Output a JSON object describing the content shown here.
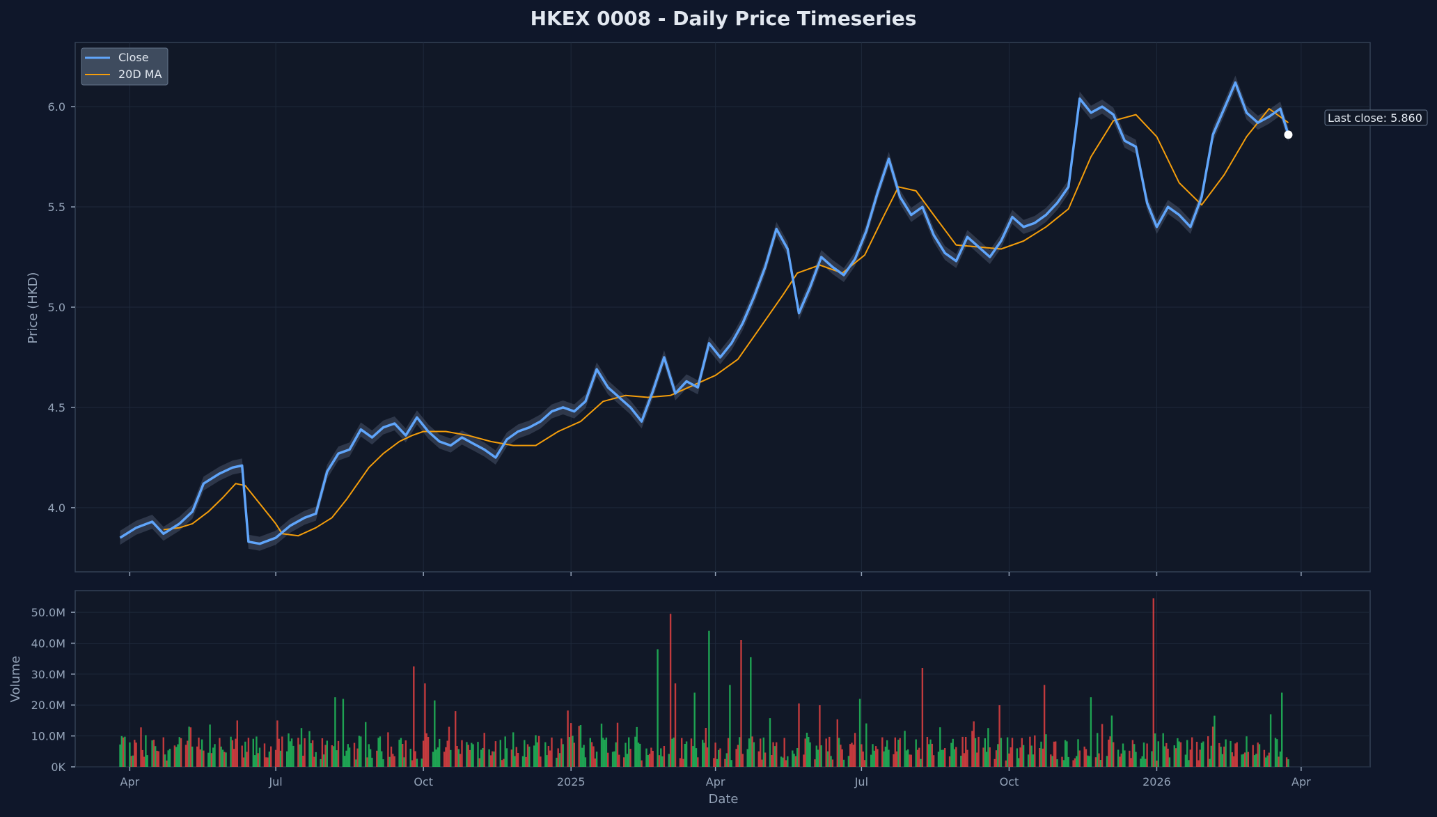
{
  "chart_data": [
    {
      "type": "line",
      "title": "HKEX 0008 - Daily Price Timeseries",
      "ylabel": "Price (HKD)",
      "ylim": [
        3.68,
        6.32
      ],
      "yticks": [
        4.0,
        4.5,
        5.0,
        5.5,
        6.0
      ],
      "ytick_labels": [
        "4.0",
        "4.5",
        "5.0",
        "5.5",
        "6.0"
      ],
      "grid": true,
      "legend": {
        "position": "top-left",
        "entries": [
          "Close",
          "20D MA"
        ]
      },
      "series": [
        {
          "name": "Close",
          "color": "#60a5fa",
          "points": [
            [
              "2024-03-26",
              3.85
            ],
            [
              "2024-04-05",
              3.9
            ],
            [
              "2024-04-15",
              3.93
            ],
            [
              "2024-04-22",
              3.87
            ],
            [
              "2024-05-02",
              3.92
            ],
            [
              "2024-05-10",
              3.98
            ],
            [
              "2024-05-17",
              4.12
            ],
            [
              "2024-05-27",
              4.17
            ],
            [
              "2024-06-04",
              4.2
            ],
            [
              "2024-06-10",
              4.21
            ],
            [
              "2024-06-14",
              3.83
            ],
            [
              "2024-06-21",
              3.82
            ],
            [
              "2024-07-01",
              3.85
            ],
            [
              "2024-07-10",
              3.91
            ],
            [
              "2024-07-19",
              3.95
            ],
            [
              "2024-07-26",
              3.97
            ],
            [
              "2024-08-02",
              4.18
            ],
            [
              "2024-08-09",
              4.27
            ],
            [
              "2024-08-16",
              4.29
            ],
            [
              "2024-08-23",
              4.39
            ],
            [
              "2024-08-30",
              4.35
            ],
            [
              "2024-09-06",
              4.4
            ],
            [
              "2024-09-13",
              4.42
            ],
            [
              "2024-09-20",
              4.36
            ],
            [
              "2024-09-27",
              4.45
            ],
            [
              "2024-10-04",
              4.38
            ],
            [
              "2024-10-11",
              4.33
            ],
            [
              "2024-10-18",
              4.31
            ],
            [
              "2024-10-25",
              4.35
            ],
            [
              "2024-11-01",
              4.32
            ],
            [
              "2024-11-08",
              4.29
            ],
            [
              "2024-11-15",
              4.25
            ],
            [
              "2024-11-22",
              4.34
            ],
            [
              "2024-11-29",
              4.38
            ],
            [
              "2024-12-06",
              4.4
            ],
            [
              "2024-12-13",
              4.43
            ],
            [
              "2024-12-20",
              4.48
            ],
            [
              "2024-12-27",
              4.5
            ],
            [
              "2025-01-03",
              4.48
            ],
            [
              "2025-01-10",
              4.53
            ],
            [
              "2025-01-17",
              4.69
            ],
            [
              "2025-01-24",
              4.6
            ],
            [
              "2025-01-31",
              4.55
            ],
            [
              "2025-02-07",
              4.5
            ],
            [
              "2025-02-14",
              4.43
            ],
            [
              "2025-02-21",
              4.58
            ],
            [
              "2025-02-28",
              4.75
            ],
            [
              "2025-03-07",
              4.57
            ],
            [
              "2025-03-14",
              4.63
            ],
            [
              "2025-03-21",
              4.6
            ],
            [
              "2025-03-28",
              4.82
            ],
            [
              "2025-04-04",
              4.75
            ],
            [
              "2025-04-11",
              4.82
            ],
            [
              "2025-04-18",
              4.92
            ],
            [
              "2025-04-25",
              5.05
            ],
            [
              "2025-05-02",
              5.2
            ],
            [
              "2025-05-09",
              5.39
            ],
            [
              "2025-05-16",
              5.29
            ],
            [
              "2025-05-23",
              4.97
            ],
            [
              "2025-05-30",
              5.1
            ],
            [
              "2025-06-06",
              5.25
            ],
            [
              "2025-06-13",
              5.2
            ],
            [
              "2025-06-20",
              5.16
            ],
            [
              "2025-06-27",
              5.24
            ],
            [
              "2025-07-04",
              5.38
            ],
            [
              "2025-07-11",
              5.57
            ],
            [
              "2025-07-18",
              5.74
            ],
            [
              "2025-07-25",
              5.55
            ],
            [
              "2025-08-01",
              5.46
            ],
            [
              "2025-08-08",
              5.5
            ],
            [
              "2025-08-15",
              5.36
            ],
            [
              "2025-08-22",
              5.27
            ],
            [
              "2025-08-29",
              5.23
            ],
            [
              "2025-09-05",
              5.35
            ],
            [
              "2025-09-12",
              5.3
            ],
            [
              "2025-09-19",
              5.25
            ],
            [
              "2025-09-26",
              5.33
            ],
            [
              "2025-10-03",
              5.45
            ],
            [
              "2025-10-10",
              5.4
            ],
            [
              "2025-10-17",
              5.42
            ],
            [
              "2025-10-24",
              5.46
            ],
            [
              "2025-10-31",
              5.52
            ],
            [
              "2025-11-07",
              5.6
            ],
            [
              "2025-11-14",
              6.04
            ],
            [
              "2025-11-21",
              5.97
            ],
            [
              "2025-11-28",
              6.0
            ],
            [
              "2025-12-05",
              5.96
            ],
            [
              "2025-12-12",
              5.83
            ],
            [
              "2025-12-19",
              5.8
            ],
            [
              "2025-12-26",
              5.52
            ],
            [
              "2026-01-01",
              5.4
            ],
            [
              "2026-01-08",
              5.5
            ],
            [
              "2026-01-15",
              5.46
            ],
            [
              "2026-01-22",
              5.4
            ],
            [
              "2026-01-29",
              5.55
            ],
            [
              "2026-02-05",
              5.86
            ],
            [
              "2026-02-12",
              5.99
            ],
            [
              "2026-02-19",
              6.12
            ],
            [
              "2026-02-26",
              5.97
            ],
            [
              "2026-03-05",
              5.92
            ],
            [
              "2026-03-12",
              5.95
            ],
            [
              "2026-03-19",
              5.99
            ],
            [
              "2026-03-24",
              5.86
            ]
          ]
        },
        {
          "name": "20D MA",
          "color": "#f59e0b",
          "points": [
            [
              "2024-04-22",
              3.89
            ],
            [
              "2024-05-02",
              3.9
            ],
            [
              "2024-05-10",
              3.92
            ],
            [
              "2024-05-20",
              3.98
            ],
            [
              "2024-05-29",
              4.05
            ],
            [
              "2024-06-06",
              4.12
            ],
            [
              "2024-06-12",
              4.11
            ],
            [
              "2024-06-21",
              4.02
            ],
            [
              "2024-07-01",
              3.92
            ],
            [
              "2024-07-05",
              3.87
            ],
            [
              "2024-07-15",
              3.86
            ],
            [
              "2024-07-26",
              3.9
            ],
            [
              "2024-08-05",
              3.95
            ],
            [
              "2024-08-14",
              4.04
            ],
            [
              "2024-08-21",
              4.12
            ],
            [
              "2024-08-28",
              4.2
            ],
            [
              "2024-09-06",
              4.27
            ],
            [
              "2024-09-16",
              4.33
            ],
            [
              "2024-09-24",
              4.36
            ],
            [
              "2024-10-01",
              4.38
            ],
            [
              "2024-10-15",
              4.38
            ],
            [
              "2024-10-29",
              4.36
            ],
            [
              "2024-11-12",
              4.33
            ],
            [
              "2024-11-26",
              4.31
            ],
            [
              "2024-12-10",
              4.31
            ],
            [
              "2024-12-24",
              4.38
            ],
            [
              "2025-01-07",
              4.43
            ],
            [
              "2025-01-21",
              4.53
            ],
            [
              "2025-02-04",
              4.56
            ],
            [
              "2025-02-18",
              4.55
            ],
            [
              "2025-03-04",
              4.56
            ],
            [
              "2025-03-18",
              4.61
            ],
            [
              "2025-04-01",
              4.66
            ],
            [
              "2025-04-15",
              4.74
            ],
            [
              "2025-04-29",
              4.9
            ],
            [
              "2025-05-13",
              5.06
            ],
            [
              "2025-05-22",
              5.17
            ],
            [
              "2025-06-05",
              5.21
            ],
            [
              "2025-06-19",
              5.17
            ],
            [
              "2025-07-03",
              5.26
            ],
            [
              "2025-07-14",
              5.44
            ],
            [
              "2025-07-24",
              5.6
            ],
            [
              "2025-08-04",
              5.58
            ],
            [
              "2025-08-15",
              5.46
            ],
            [
              "2025-08-29",
              5.31
            ],
            [
              "2025-09-12",
              5.3
            ],
            [
              "2025-09-26",
              5.29
            ],
            [
              "2025-10-10",
              5.33
            ],
            [
              "2025-10-24",
              5.4
            ],
            [
              "2025-11-07",
              5.49
            ],
            [
              "2025-11-21",
              5.75
            ],
            [
              "2025-12-05",
              5.93
            ],
            [
              "2025-12-19",
              5.96
            ],
            [
              "2026-01-01",
              5.85
            ],
            [
              "2026-01-15",
              5.62
            ],
            [
              "2026-01-29",
              5.51
            ],
            [
              "2026-02-12",
              5.66
            ],
            [
              "2026-02-26",
              5.85
            ],
            [
              "2026-03-12",
              5.99
            ],
            [
              "2026-03-24",
              5.92
            ]
          ]
        }
      ],
      "annotation": {
        "text": "Last close: 5.860",
        "date": "2026-03-24",
        "value": 5.86
      }
    },
    {
      "type": "bar",
      "xlabel": "Date",
      "ylabel": "Volume",
      "ylim": [
        0,
        57000000
      ],
      "yticks": [
        0,
        10000000,
        20000000,
        30000000,
        40000000,
        50000000
      ],
      "ytick_labels": [
        "0K",
        "10.0M",
        "20.0M",
        "30.0M",
        "40.0M",
        "50.0M"
      ],
      "grid": true,
      "colors": {
        "up": "#22c55e",
        "down": "#ef4444"
      },
      "spikes": [
        [
          "2024-03-28",
          9.5,
          "down"
        ],
        [
          "2024-05-08",
          13,
          "up"
        ],
        [
          "2024-06-07",
          15,
          "down"
        ],
        [
          "2024-08-07",
          22.5,
          "up"
        ],
        [
          "2024-08-12",
          22,
          "up"
        ],
        [
          "2024-09-25",
          32.5,
          "down"
        ],
        [
          "2024-10-02",
          27,
          "down"
        ],
        [
          "2024-10-08",
          21.5,
          "up"
        ],
        [
          "2024-11-08",
          11,
          "down"
        ],
        [
          "2025-01-20",
          14,
          "up"
        ],
        [
          "2025-02-24",
          38,
          "up"
        ],
        [
          "2025-03-04",
          49.5,
          "down"
        ],
        [
          "2025-03-07",
          27,
          "down"
        ],
        [
          "2025-03-19",
          24,
          "up"
        ],
        [
          "2025-03-28",
          44,
          "up"
        ],
        [
          "2025-04-10",
          26.5,
          "up"
        ],
        [
          "2025-04-17",
          41,
          "down"
        ],
        [
          "2025-04-23",
          35.5,
          "up"
        ],
        [
          "2025-05-23",
          20.5,
          "down"
        ],
        [
          "2025-06-05",
          20,
          "down"
        ],
        [
          "2025-06-30",
          22,
          "up"
        ],
        [
          "2025-08-08",
          32,
          "down"
        ],
        [
          "2025-09-25",
          20,
          "down"
        ],
        [
          "2025-10-23",
          26.5,
          "down"
        ],
        [
          "2025-11-21",
          22.5,
          "up"
        ],
        [
          "2025-12-30",
          54.5,
          "down"
        ],
        [
          "2026-02-05",
          13,
          "down"
        ],
        [
          "2026-03-13",
          17,
          "up"
        ],
        [
          "2026-03-20",
          24,
          "up"
        ]
      ]
    }
  ],
  "xaxis": {
    "ticks": [
      [
        "2024-04-01",
        "Apr"
      ],
      [
        "2024-07-01",
        "Jul"
      ],
      [
        "2024-10-01",
        "Oct"
      ],
      [
        "2025-01-01",
        "2025"
      ],
      [
        "2025-04-01",
        "Apr"
      ],
      [
        "2025-07-01",
        "Jul"
      ],
      [
        "2025-10-01",
        "Oct"
      ],
      [
        "2026-01-01",
        "2026"
      ],
      [
        "2026-04-01",
        "Apr"
      ]
    ],
    "range": [
      "2024-02-27",
      "2026-05-14"
    ]
  },
  "style": {
    "background": "#0f172a",
    "panel": "#111827",
    "grid": "#1e293b",
    "frame": "#334155",
    "text": "#94a3b8",
    "title": "#e2e8f0"
  }
}
